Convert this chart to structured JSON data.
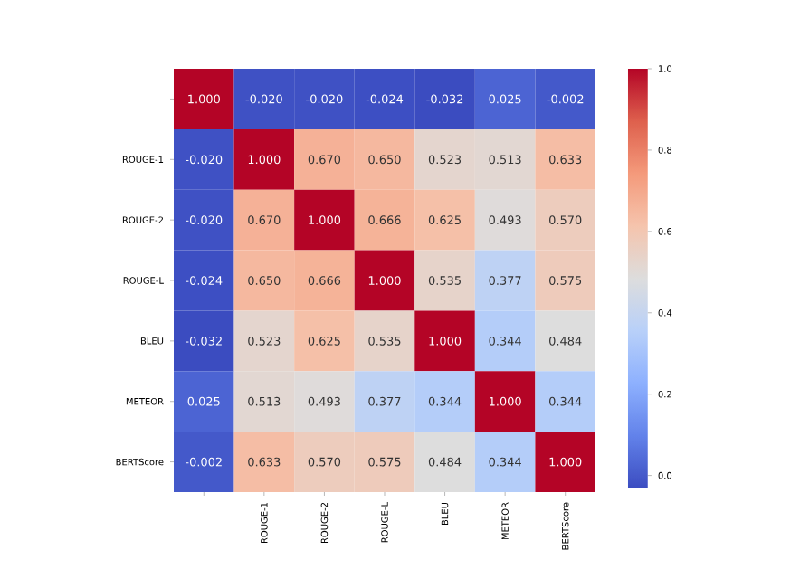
{
  "chart_data": {
    "type": "heatmap",
    "categories": [
      null,
      "ROUGE-1",
      "ROUGE-2",
      "ROUGE-L",
      "BLEU",
      "METEOR",
      "BERTScore"
    ],
    "y_categories": [
      null,
      "ROUGE-1",
      "ROUGE-2",
      "ROUGE-L",
      "BLEU",
      "METEOR",
      "BERTScore"
    ],
    "cells": [
      [
        1.0,
        -0.02,
        -0.02,
        -0.024,
        -0.032,
        0.025,
        -0.002
      ],
      [
        -0.02,
        1.0,
        0.67,
        0.65,
        0.523,
        0.513,
        0.633
      ],
      [
        -0.02,
        0.67,
        1.0,
        0.666,
        0.625,
        0.493,
        0.57
      ],
      [
        -0.024,
        0.65,
        0.666,
        1.0,
        0.535,
        0.377,
        0.575
      ],
      [
        -0.032,
        0.523,
        0.625,
        0.535,
        1.0,
        0.344,
        0.484
      ],
      [
        0.025,
        0.513,
        0.493,
        0.377,
        0.344,
        1.0,
        0.344
      ],
      [
        -0.002,
        0.633,
        0.57,
        0.575,
        0.484,
        0.344,
        1.0
      ]
    ],
    "cell_labels": [
      [
        "1.000",
        "-0.020",
        "-0.020",
        "-0.024",
        "-0.032",
        "0.025",
        "-0.002"
      ],
      [
        "-0.020",
        "1.000",
        "0.670",
        "0.650",
        "0.523",
        "0.513",
        "0.633"
      ],
      [
        "-0.020",
        "0.670",
        "1.000",
        "0.666",
        "0.625",
        "0.493",
        "0.570"
      ],
      [
        "-0.024",
        "0.650",
        "0.666",
        "1.000",
        "0.535",
        "0.377",
        "0.575"
      ],
      [
        "-0.032",
        "0.523",
        "0.625",
        "0.535",
        "1.000",
        "0.344",
        "0.484"
      ],
      [
        "0.025",
        "0.513",
        "0.493",
        "0.377",
        "0.344",
        "1.000",
        "0.344"
      ],
      [
        "-0.002",
        "0.633",
        "0.570",
        "0.575",
        "0.484",
        "0.344",
        "1.000"
      ]
    ],
    "clim": [
      -0.032,
      1.0
    ],
    "cticks": [
      {
        "value": 0,
        "label": "0.0"
      },
      {
        "value": 0.2,
        "label": "0.2"
      },
      {
        "value": 0.4,
        "label": "0.4"
      },
      {
        "value": 0.6,
        "label": "0.6"
      },
      {
        "value": 0.8,
        "label": "0.8"
      },
      {
        "value": 1.0,
        "label": "1.0"
      }
    ]
  }
}
